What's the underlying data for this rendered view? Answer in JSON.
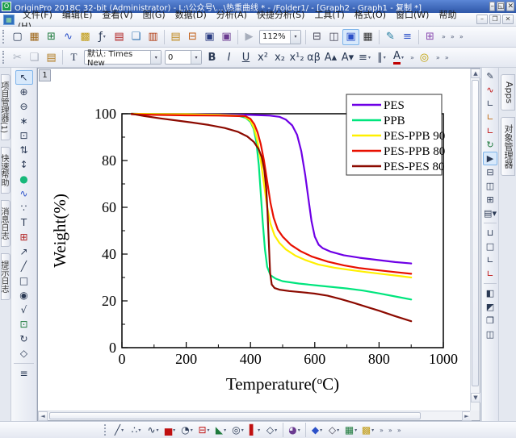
{
  "window": {
    "title": "OriginPro 2018C 32-bit (Administrator) - L:\\公众号\\...\\热重曲线 * - /Folder1/ - [Graph2 - Graph1 - 复制 *]",
    "app_icon": "origin-logo",
    "buttons": [
      {
        "name": "minimize-button",
        "glyph": "–"
      },
      {
        "name": "restore-button",
        "glyph": "◱"
      },
      {
        "name": "close-button",
        "glyph": "✕"
      }
    ]
  },
  "menu": {
    "items": [
      "文件(F)",
      "编辑(E)",
      "查看(V)",
      "图(G)",
      "数据(D)",
      "分析(A)",
      "快捷分析(S)",
      "工具(T)",
      "格式(O)",
      "窗口(W)",
      "帮助(H)"
    ],
    "mdi_buttons": [
      {
        "name": "mdi-minimize-button",
        "glyph": "–"
      },
      {
        "name": "mdi-restore-button",
        "glyph": "❐"
      },
      {
        "name": "mdi-close-button",
        "glyph": "✕"
      }
    ]
  },
  "toolbar_standard": {
    "zoom_value": "112%",
    "items": [
      {
        "name": "new-project-button",
        "glyph": "▢"
      },
      {
        "name": "new-workbook-button",
        "glyph": "▦",
        "color": "#A06A1E"
      },
      {
        "name": "new-excel-workbook-button",
        "glyph": "⊞",
        "color": "#1E7A3C"
      },
      {
        "name": "new-graph-button",
        "glyph": "∿",
        "color": "#2B50C8"
      },
      {
        "name": "new-matrix-button",
        "glyph": "▩",
        "color": "#C09A10"
      },
      {
        "name": "new-function-plot-button",
        "glyph": "ƒ",
        "dd": true
      },
      {
        "name": "new-layout-button",
        "glyph": "▤",
        "color": "#B02020"
      },
      {
        "name": "new-notes-button",
        "glyph": "❏",
        "color": "#2B6FB0"
      },
      {
        "name": "new-report-button",
        "glyph": "▥",
        "color": "#B03A10"
      },
      {
        "sep": true
      },
      {
        "name": "open-button",
        "glyph": "▤",
        "color": "#C08A20"
      },
      {
        "name": "import-button",
        "glyph": "⊟",
        "color": "#C05A10"
      },
      {
        "name": "save-project-button",
        "glyph": "▣",
        "color": "#283A80"
      },
      {
        "name": "save-template-button",
        "glyph": "▣",
        "color": "#6A3A90"
      },
      {
        "sep": true
      },
      {
        "name": "recalculate-button",
        "glyph": "▶",
        "gray": true
      },
      {
        "zoom_combo": true
      },
      {
        "sep": true
      },
      {
        "name": "print-button",
        "glyph": "⊟",
        "color": "#445"
      },
      {
        "name": "print-preview-button",
        "glyph": "◫",
        "color": "#445"
      },
      {
        "name": "copy-graph-image-button",
        "glyph": "▣",
        "color": "#2B50C8",
        "sel": true
      },
      {
        "name": "video-capture-button",
        "glyph": "▦",
        "color": "#333"
      },
      {
        "sep": true
      },
      {
        "name": "digitizer-button",
        "glyph": "✎",
        "color": "#1E7A9E"
      },
      {
        "name": "layer-contents-button",
        "glyph": "≡",
        "color": "#2B50C8"
      },
      {
        "sep": true
      },
      {
        "name": "project-explorer-toggle-button",
        "glyph": "⊞",
        "color": "#8A4AB0"
      },
      {
        "overflow": true
      },
      {
        "overflow": true
      },
      {
        "overflow": true
      }
    ]
  },
  "toolbar_format": {
    "style_label": "默认: Times New",
    "size_value": "0",
    "items_left": [
      {
        "name": "cut-button",
        "glyph": "✂",
        "gray": true
      },
      {
        "name": "copy-button",
        "glyph": "❏",
        "gray": true
      },
      {
        "name": "paste-button",
        "glyph": "▤",
        "color": "#B07A20"
      }
    ],
    "items_right": [
      {
        "name": "bold-button",
        "glyph": "B",
        "bold": true
      },
      {
        "name": "italic-button",
        "glyph": "I",
        "italic": true
      },
      {
        "name": "underline-button",
        "glyph": "U",
        "underl": true
      },
      {
        "name": "superscript-button",
        "glyph": "x²"
      },
      {
        "name": "subscript-button",
        "glyph": "x₂"
      },
      {
        "name": "supersubscript-button",
        "glyph": "x¹₂"
      },
      {
        "name": "greek-button",
        "glyph": "αβ"
      },
      {
        "name": "increase-font-button",
        "glyph": "A▴"
      },
      {
        "name": "decrease-font-button",
        "glyph": "A▾"
      },
      {
        "name": "alignment-button",
        "glyph": "≡",
        "dd": true
      },
      {
        "name": "distribute-button",
        "glyph": "∥",
        "dd": true
      },
      {
        "name": "font-color-button",
        "glyph": "A",
        "colorbar": "#C00000",
        "dd": true
      },
      {
        "overflow": true
      },
      {
        "name": "tips-button",
        "glyph": "◎",
        "color": "#C0A000"
      },
      {
        "overflow": true
      },
      {
        "overflow": true
      }
    ]
  },
  "left_tabs": [
    {
      "name": "tab-project-manager",
      "label": "项目管理器(1)"
    },
    {
      "name": "tab-quick-help",
      "label": "快速帮助"
    },
    {
      "name": "tab-message-log",
      "label": "消息日志"
    },
    {
      "name": "tab-hint-log",
      "label": "提示日志"
    }
  ],
  "right_tabs": [
    {
      "name": "tab-apps",
      "label": "Apps"
    },
    {
      "name": "tab-object-manager",
      "label": "对象管理器"
    }
  ],
  "left_tools": [
    {
      "name": "pointer-tool",
      "glyph": "↖",
      "sel": true
    },
    {
      "name": "zoom-in-tool",
      "glyph": "⊕"
    },
    {
      "name": "zoom-out-tool",
      "glyph": "⊖"
    },
    {
      "name": "screen-reader-tool",
      "glyph": "∗"
    },
    {
      "name": "data-reader-tool",
      "glyph": "⊡"
    },
    {
      "name": "data-selector-tool",
      "glyph": "⇅"
    },
    {
      "name": "mask-range-tool",
      "glyph": "↕"
    },
    {
      "name": "mask-points-tool",
      "glyph": "●",
      "color": "#17B87A"
    },
    {
      "name": "draw-data-tool",
      "glyph": "∿",
      "color": "#2B50C8"
    },
    {
      "name": "cluster-tool",
      "glyph": "∵"
    },
    {
      "name": "text-tool",
      "glyph": "T"
    },
    {
      "name": "rectangle-annotation-tool",
      "glyph": "⊞",
      "color": "#B02020"
    },
    {
      "name": "arrow-tool",
      "glyph": "↗"
    },
    {
      "name": "line-tool",
      "glyph": "╱"
    },
    {
      "name": "rectangle-tool",
      "glyph": "□"
    },
    {
      "name": "pan-hand-tool",
      "glyph": "◉"
    },
    {
      "name": "equation-tool",
      "glyph": "√"
    },
    {
      "name": "insert-graph-tool",
      "glyph": "⊡",
      "color": "#1E7A3C"
    },
    {
      "name": "rotate-tool",
      "glyph": "↻"
    },
    {
      "name": "insert-object-tool",
      "glyph": "◇"
    },
    {
      "sep": true
    },
    {
      "name": "layer-lines-tool",
      "glyph": "≡"
    }
  ],
  "right_tools": [
    {
      "name": "speed-mode-tool",
      "glyph": "✎"
    },
    {
      "name": "add-plot-tool",
      "glyph": "∿",
      "color": "#C01010"
    },
    {
      "name": "bottom-axis-tool",
      "glyph": "∟"
    },
    {
      "name": "left-axis-tool",
      "glyph": "∟",
      "color": "#C06A10"
    },
    {
      "name": "top-axis-tool",
      "glyph": "∟",
      "color": "#C01010"
    },
    {
      "name": "refresh-graph-tool",
      "glyph": "↻",
      "color": "#1E7A3C"
    },
    {
      "name": "fit-page-tool",
      "glyph": "▶",
      "sel": true
    },
    {
      "name": "add-bottom-x-layer-tool",
      "glyph": "⊟"
    },
    {
      "name": "add-left-y-layer-tool",
      "glyph": "◫"
    },
    {
      "name": "add-4-panel-layer-tool",
      "glyph": "⊞"
    },
    {
      "name": "merge-graphs-tool",
      "glyph": "▤",
      "dd": true
    },
    {
      "sep": true
    },
    {
      "name": "new-layer-frame-tool",
      "glyph": "⊔"
    },
    {
      "name": "new-layer-box-tool",
      "glyph": "□"
    },
    {
      "name": "new-layer-corner-tool",
      "glyph": "∟"
    },
    {
      "name": "new-layer-corner-red-tool",
      "glyph": "∟",
      "color": "#C01010"
    },
    {
      "sep": true
    },
    {
      "name": "arrange-horizontal-tool",
      "glyph": "◧"
    },
    {
      "name": "arrange-vertical-tool",
      "glyph": "◩"
    },
    {
      "name": "arrange-cascade-tool",
      "glyph": "❐"
    },
    {
      "name": "arrange-tile-tool",
      "glyph": "◫"
    }
  ],
  "bottom_tools": [
    {
      "name": "line-plot-button",
      "glyph": "╱",
      "dd": true
    },
    {
      "name": "scatter-plot-button",
      "glyph": "∴",
      "dd": true
    },
    {
      "name": "line-symbol-plot-button",
      "glyph": "∿",
      "dd": true
    },
    {
      "name": "column-plot-button",
      "glyph": "▅",
      "color": "#C01010",
      "dd": true
    },
    {
      "name": "pie-chart-button",
      "glyph": "◔",
      "dd": true
    },
    {
      "name": "box-chart-button",
      "glyph": "⊟",
      "color": "#C01010",
      "dd": true
    },
    {
      "name": "area-chart-button",
      "glyph": "◣",
      "color": "#1E7A3C",
      "dd": true
    },
    {
      "name": "polar-plot-button",
      "glyph": "◎",
      "dd": true
    },
    {
      "name": "stock-chart-button",
      "glyph": "▌",
      "color": "#C01010",
      "dd": true
    },
    {
      "name": "template-library-button",
      "glyph": "◇",
      "dd": true
    },
    {
      "sep": true
    },
    {
      "name": "3d-pie-button",
      "glyph": "◕",
      "color": "#6A3A90",
      "dd": true
    },
    {
      "sep": true
    },
    {
      "name": "3d-surface-button",
      "glyph": "◆",
      "color": "#2B50C8",
      "dd": true
    },
    {
      "name": "3d-wireframe-button",
      "glyph": "◇",
      "color": "#445",
      "dd": true
    },
    {
      "name": "worksheet-button",
      "glyph": "▦",
      "color": "#1E7A3C",
      "dd": true
    },
    {
      "name": "matrix-button",
      "glyph": "▩",
      "color": "#C09A10",
      "dd": true
    },
    {
      "overflow": true
    },
    {
      "overflow": true
    },
    {
      "overflow": true
    }
  ],
  "document": {
    "layer_tab": "1"
  },
  "chart_data": {
    "type": "line",
    "title": "",
    "xlabel": "Temperature(°C)",
    "ylabel": "Weight(%)",
    "xlim": [
      0,
      1000
    ],
    "ylim": [
      0,
      100
    ],
    "xticks": [
      0,
      200,
      400,
      600,
      800,
      1000
    ],
    "yticks": [
      0,
      20,
      40,
      60,
      80,
      100
    ],
    "x_minor_step": 100,
    "y_minor_step": 10,
    "grid": false,
    "legend_position": "top-right-inside",
    "series": [
      {
        "name": "PES",
        "color": "#6E00E6",
        "points": [
          [
            30,
            100
          ],
          [
            100,
            99.9
          ],
          [
            200,
            99.8
          ],
          [
            300,
            99.7
          ],
          [
            400,
            99.5
          ],
          [
            460,
            99.2
          ],
          [
            490,
            98.7
          ],
          [
            510,
            97.5
          ],
          [
            530,
            95
          ],
          [
            545,
            91
          ],
          [
            558,
            84
          ],
          [
            570,
            74
          ],
          [
            580,
            64
          ],
          [
            590,
            54
          ],
          [
            600,
            47.5
          ],
          [
            612,
            44
          ],
          [
            625,
            42.5
          ],
          [
            650,
            41
          ],
          [
            690,
            39.5
          ],
          [
            740,
            38.4
          ],
          [
            800,
            37.4
          ],
          [
            850,
            36.6
          ],
          [
            900,
            36
          ]
        ]
      },
      {
        "name": "PPB",
        "color": "#00E57D",
        "points": [
          [
            30,
            100
          ],
          [
            100,
            99.9
          ],
          [
            200,
            99.7
          ],
          [
            300,
            99.5
          ],
          [
            360,
            99.2
          ],
          [
            385,
            98.3
          ],
          [
            400,
            96.5
          ],
          [
            410,
            93.5
          ],
          [
            418,
            88
          ],
          [
            426,
            78
          ],
          [
            432,
            66
          ],
          [
            438,
            54
          ],
          [
            445,
            42
          ],
          [
            452,
            34.5
          ],
          [
            462,
            31
          ],
          [
            478,
            29.5
          ],
          [
            500,
            28.4
          ],
          [
            550,
            27.4
          ],
          [
            600,
            26.7
          ],
          [
            650,
            26
          ],
          [
            700,
            25.3
          ],
          [
            750,
            24.4
          ],
          [
            800,
            23.2
          ],
          [
            850,
            21.9
          ],
          [
            900,
            20.6
          ]
        ]
      },
      {
        "name": "PES-PPB 90",
        "color": "#FFF000",
        "points": [
          [
            30,
            100
          ],
          [
            100,
            99.9
          ],
          [
            200,
            99.8
          ],
          [
            300,
            99.5
          ],
          [
            380,
            99
          ],
          [
            400,
            97
          ],
          [
            412,
            93.5
          ],
          [
            422,
            88
          ],
          [
            432,
            80
          ],
          [
            442,
            70
          ],
          [
            452,
            60
          ],
          [
            462,
            53
          ],
          [
            475,
            48
          ],
          [
            490,
            44.8
          ],
          [
            510,
            42
          ],
          [
            540,
            39.3
          ],
          [
            570,
            37.5
          ],
          [
            610,
            35.6
          ],
          [
            660,
            34.2
          ],
          [
            710,
            33.2
          ],
          [
            760,
            32.3
          ],
          [
            810,
            31.5
          ],
          [
            860,
            30.7
          ],
          [
            900,
            30
          ]
        ]
      },
      {
        "name": "PES-PPB 80",
        "color": "#E81000",
        "points": [
          [
            30,
            99.8
          ],
          [
            100,
            99.5
          ],
          [
            200,
            99.3
          ],
          [
            300,
            99.2
          ],
          [
            385,
            98.9
          ],
          [
            400,
            97.8
          ],
          [
            412,
            95.5
          ],
          [
            422,
            92
          ],
          [
            432,
            87
          ],
          [
            442,
            80
          ],
          [
            452,
            71
          ],
          [
            462,
            62
          ],
          [
            472,
            55.5
          ],
          [
            485,
            50.5
          ],
          [
            500,
            47.5
          ],
          [
            525,
            44
          ],
          [
            555,
            41.3
          ],
          [
            590,
            39
          ],
          [
            640,
            36.8
          ],
          [
            690,
            35.2
          ],
          [
            740,
            34
          ],
          [
            790,
            33.2
          ],
          [
            850,
            32.3
          ],
          [
            900,
            31.6
          ]
        ]
      },
      {
        "name": "PES-PES 80",
        "color": "#8C0A00",
        "points": [
          [
            30,
            100
          ],
          [
            70,
            99
          ],
          [
            120,
            98
          ],
          [
            170,
            97.1
          ],
          [
            220,
            96.2
          ],
          [
            270,
            95.2
          ],
          [
            320,
            93.9
          ],
          [
            360,
            92.3
          ],
          [
            390,
            90.3
          ],
          [
            410,
            88
          ],
          [
            425,
            85
          ],
          [
            435,
            81.5
          ],
          [
            443,
            76
          ],
          [
            449,
            68
          ],
          [
            453,
            58
          ],
          [
            457,
            45
          ],
          [
            461,
            32
          ],
          [
            466,
            27
          ],
          [
            475,
            25.5
          ],
          [
            490,
            24.8
          ],
          [
            520,
            24.2
          ],
          [
            560,
            23.7
          ],
          [
            600,
            23.1
          ],
          [
            640,
            22.2
          ],
          [
            680,
            20.8
          ],
          [
            720,
            19.2
          ],
          [
            760,
            17.5
          ],
          [
            800,
            15.8
          ],
          [
            850,
            13.5
          ],
          [
            900,
            11.3
          ]
        ]
      }
    ]
  }
}
